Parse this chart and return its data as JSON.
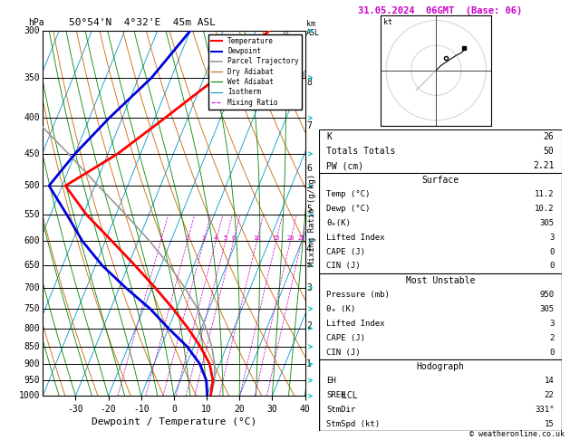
{
  "title_left": "50°54'N  4°32'E  45m ASL",
  "title_right": "31.05.2024  06GMT  (Base: 06)",
  "xlabel": "Dewpoint / Temperature (°C)",
  "temp_xlim": [
    -40,
    40
  ],
  "temp_xticks": [
    -30,
    -20,
    -10,
    0,
    10,
    20,
    30,
    40
  ],
  "pressure_levels": [
    300,
    350,
    400,
    450,
    500,
    550,
    600,
    650,
    700,
    750,
    800,
    850,
    900,
    950,
    1000
  ],
  "km_ticks": [
    1,
    2,
    3,
    4,
    5,
    6,
    7,
    8
  ],
  "temp_profile_T": [
    11.2,
    10.0,
    7.0,
    2.0,
    -4.0,
    -11.0,
    -19.0,
    -28.0,
    -38.0,
    -49.0,
    -59.0,
    -47.0,
    -37.0,
    -26.0,
    -16.0
  ],
  "temp_profile_p": [
    1000,
    950,
    900,
    850,
    800,
    750,
    700,
    650,
    600,
    550,
    500,
    450,
    400,
    350,
    300
  ],
  "dewp_profile_T": [
    10.2,
    8.0,
    4.0,
    -2.0,
    -10.0,
    -18.0,
    -28.0,
    -38.0,
    -47.0,
    -55.0,
    -64.0,
    -60.0,
    -54.0,
    -46.0,
    -40.0
  ],
  "dewp_profile_p": [
    1000,
    950,
    900,
    850,
    800,
    750,
    700,
    650,
    600,
    550,
    500,
    450,
    400,
    350,
    300
  ],
  "parcel_T": [
    11.2,
    10.5,
    8.5,
    5.5,
    1.5,
    -3.5,
    -10.0,
    -17.5,
    -26.5,
    -37.0,
    -49.0,
    -62.0,
    -77.0,
    -93.0,
    -110.0
  ],
  "parcel_p": [
    1000,
    950,
    900,
    850,
    800,
    750,
    700,
    650,
    600,
    550,
    500,
    450,
    400,
    350,
    300
  ],
  "bg_color": "#ffffff",
  "plot_bg": "#ffffff",
  "temp_color": "#ff0000",
  "dewp_color": "#0000dd",
  "parcel_color": "#999999",
  "dry_adiabat_color": "#cc6600",
  "wet_adiabat_color": "#008800",
  "isotherm_color": "#0099cc",
  "mixing_ratio_color": "#cc00cc",
  "wind_color": "#00bbbb",
  "stats": {
    "K": 26,
    "Totals_Totals": 50,
    "PW_cm": 2.21,
    "Surface_Temp": 11.2,
    "Surface_Dewp": 10.2,
    "Surface_theta_e": 305,
    "Surface_LiftedIndex": 3,
    "Surface_CAPE": 0,
    "Surface_CIN": 0,
    "MU_Pressure": 950,
    "MU_theta_e": 305,
    "MU_LiftedIndex": 3,
    "MU_CAPE": 2,
    "MU_CIN": 0,
    "Hodo_EH": 14,
    "Hodo_SREH": 22,
    "Hodo_StmDir": 331,
    "Hodo_StmSpd": 15
  },
  "copyright": "© weatheronline.co.uk"
}
